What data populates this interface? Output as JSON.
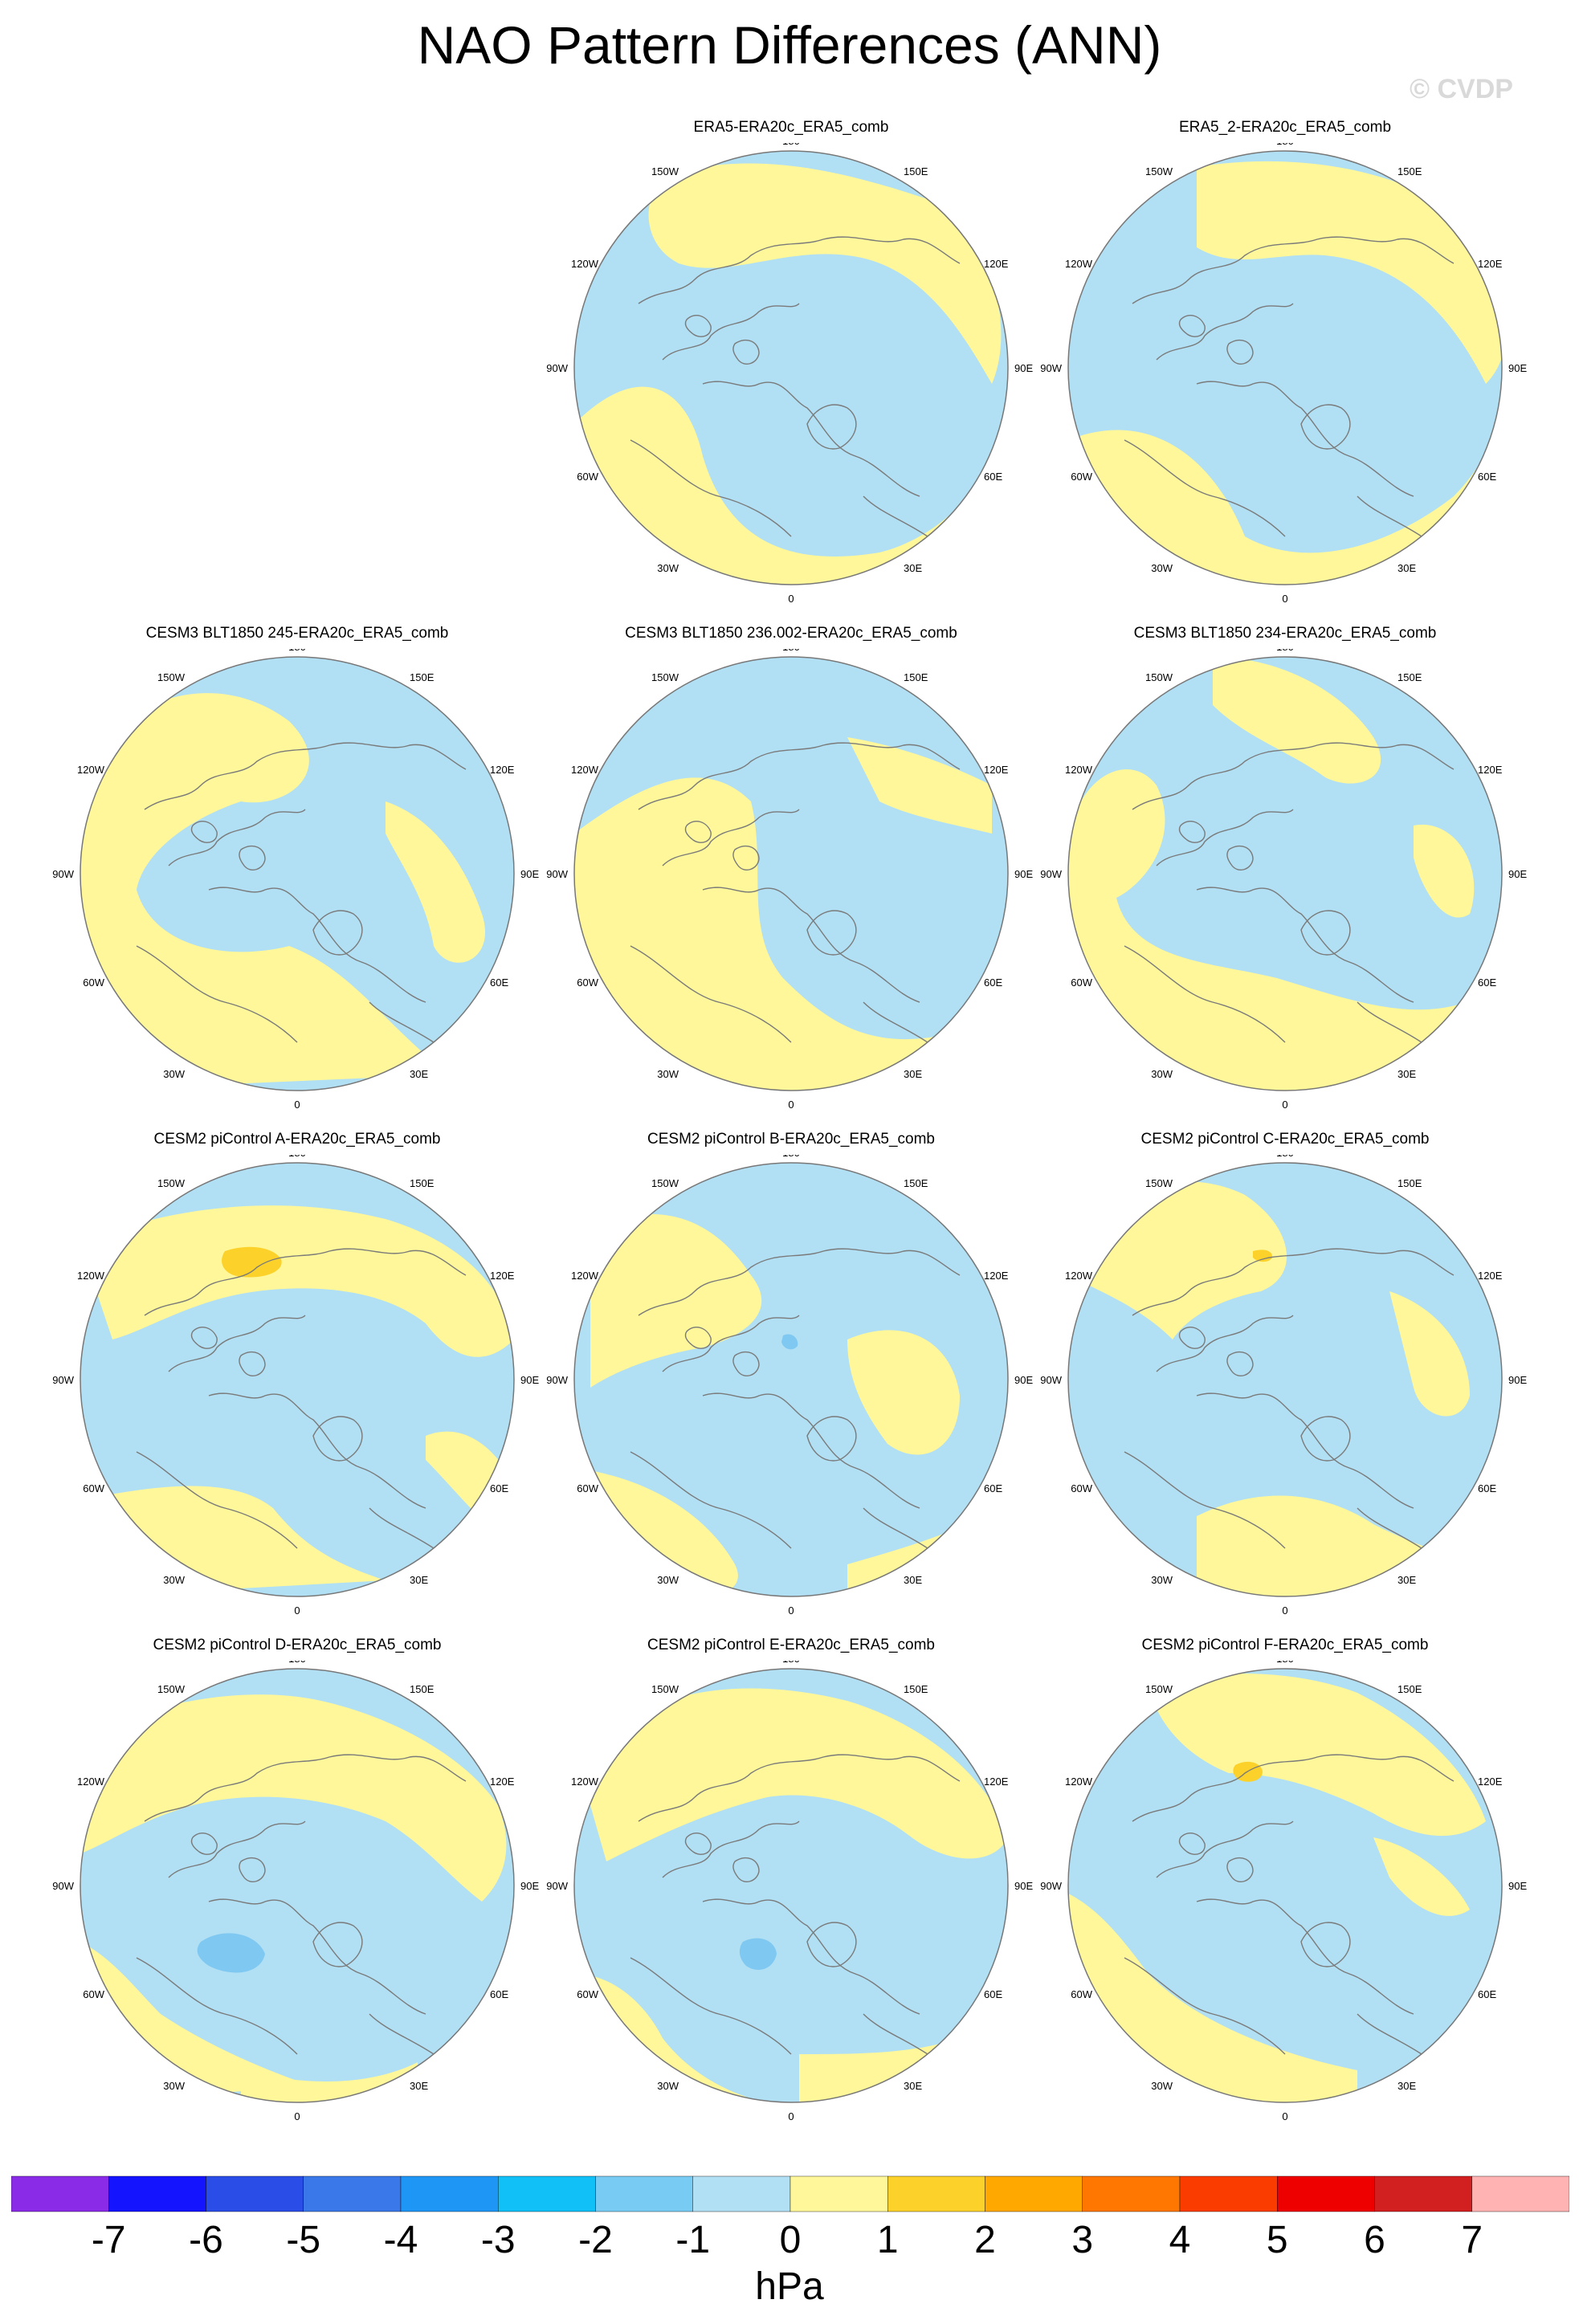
{
  "title": "NAO Pattern Differences (ANN)",
  "watermark": "© CVDP",
  "colors": {
    "neg_light": "#b1dff3",
    "pos_light": "#fff79a",
    "pos_mid": "#fcd22a",
    "neg_mid": "#7fc8f1",
    "coast": "#7a7a7a",
    "border": "#777777"
  },
  "map_labels": {
    "top": "180",
    "bottom": "0",
    "left": "90W",
    "right": "90E",
    "ul": "150W",
    "ur": "150E",
    "ml_upper": "120W",
    "mr_upper": "120E",
    "ml_lower": "60W",
    "mr_lower": "60E",
    "ll": "30W",
    "lr": "30E"
  },
  "panels": [
    {
      "title": "ERA5-ERA20c_ERA5_comb"
    },
    {
      "title": "ERA5_2-ERA20c_ERA5_comb"
    },
    {
      "title": "CESM3 BLT1850 245-ERA20c_ERA5_comb"
    },
    {
      "title": "CESM3 BLT1850 236.002-ERA20c_ERA5_comb"
    },
    {
      "title": "CESM3 BLT1850 234-ERA20c_ERA5_comb"
    },
    {
      "title": "CESM2 piControl A-ERA20c_ERA5_comb"
    },
    {
      "title": "CESM2 piControl B-ERA20c_ERA5_comb"
    },
    {
      "title": "CESM2 piControl C-ERA20c_ERA5_comb"
    },
    {
      "title": "CESM2 piControl D-ERA20c_ERA5_comb"
    },
    {
      "title": "CESM2 piControl E-ERA20c_ERA5_comb"
    },
    {
      "title": "CESM2 piControl F-ERA20c_ERA5_comb"
    }
  ],
  "colorbar": {
    "units": "hPa",
    "labels": [
      "-7",
      "-6",
      "-5",
      "-4",
      "-3",
      "-2",
      "-1",
      "0",
      "1",
      "2",
      "3",
      "4",
      "5",
      "6",
      "7"
    ],
    "colors": [
      "#8a2be8",
      "#1414ff",
      "#2a4de8",
      "#3a78ea",
      "#1e96f6",
      "#12c0f8",
      "#78ccf4",
      "#b1dff3",
      "#fff79a",
      "#fcd22a",
      "#ffa800",
      "#ff7600",
      "#fb3c00",
      "#ee0000",
      "#d21f1f",
      "#ffb3b3"
    ]
  }
}
